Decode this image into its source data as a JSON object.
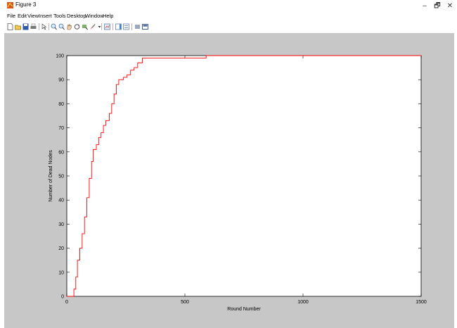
{
  "window": {
    "title": "Figure 3",
    "controls": {
      "minimize": "–",
      "maximize": "🗗",
      "close": "✕"
    }
  },
  "menu": {
    "items": [
      "File",
      "Edit",
      "View",
      "Insert",
      "Tools",
      "Desktop",
      "Window",
      "Help"
    ]
  },
  "toolbar": {
    "icons": [
      "new-figure-icon",
      "open-file-icon",
      "save-icon",
      "print-icon",
      "select-arrow-icon",
      "zoom-in-icon",
      "zoom-out-icon",
      "pan-icon",
      "rotate-3d-icon",
      "data-cursor-icon",
      "brush-icon",
      "link-plot-icon",
      "colorbar-icon",
      "legend-icon",
      "hide-plot-tools-icon",
      "show-plot-tools-icon"
    ]
  },
  "colors": {
    "line": "#ff0000",
    "figure_bg": "#c7c7c7",
    "axes_bg": "#ffffff"
  },
  "chart_data": {
    "type": "line",
    "title": "",
    "xlabel": "Round Number",
    "ylabel": "Number of Dead Nodes",
    "xlim": [
      0,
      1500
    ],
    "ylim": [
      0,
      100
    ],
    "xticks": [
      0,
      500,
      1000,
      1500
    ],
    "yticks": [
      0,
      10,
      20,
      30,
      40,
      50,
      60,
      70,
      80,
      90,
      100
    ],
    "grid": false,
    "series": [
      {
        "style": "step",
        "x": [
          0,
          25,
          30,
          38,
          45,
          55,
          65,
          75,
          85,
          95,
          105,
          112,
          125,
          135,
          145,
          155,
          165,
          180,
          190,
          200,
          210,
          220,
          240,
          255,
          270,
          285,
          300,
          320,
          590,
          1500
        ],
        "y": [
          0,
          0,
          3,
          8,
          15,
          20,
          26,
          33,
          41,
          49,
          56,
          61,
          63,
          66,
          68,
          71,
          73,
          76,
          80,
          84,
          88,
          90,
          91,
          92,
          94,
          95,
          97,
          99,
          100,
          100
        ]
      }
    ]
  }
}
